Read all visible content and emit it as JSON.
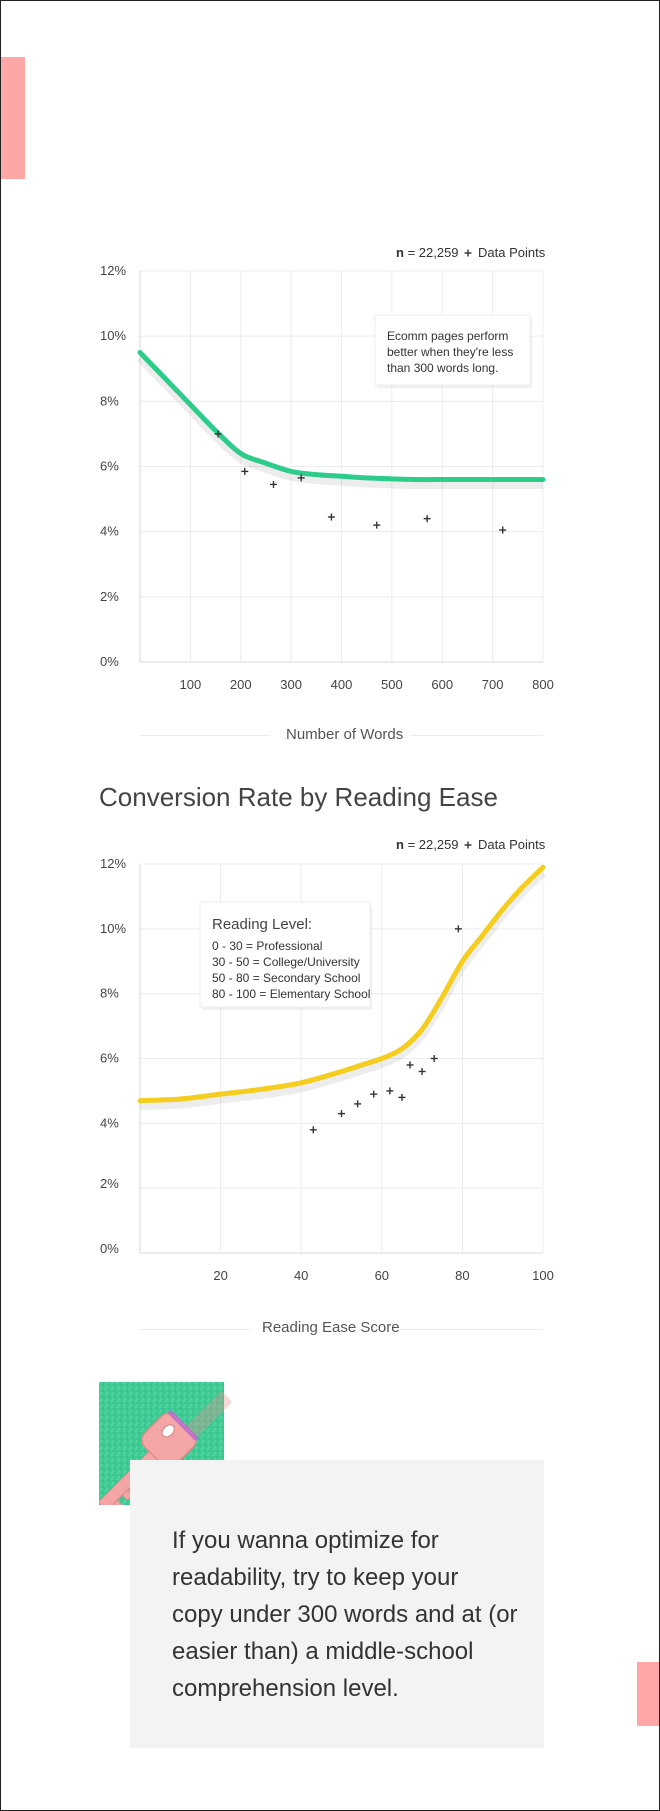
{
  "chart_data": [
    {
      "type": "line",
      "legend": {
        "n_label": "n",
        "n_value": "= 22,259",
        "marker": "+",
        "marker_label": "Data Points"
      },
      "annotation": [
        "Ecomm pages perform",
        "better when they're less",
        "than 300 words long."
      ],
      "xlabel": "Number of Words",
      "ylabel": "",
      "xlim": [
        0,
        800
      ],
      "ylim": [
        0,
        12
      ],
      "x_ticks": [
        100,
        200,
        300,
        400,
        500,
        600,
        700,
        800
      ],
      "y_ticks": [
        "0%",
        "2%",
        "4%",
        "6%",
        "8%",
        "10%",
        "12%"
      ],
      "y_tick_values": [
        0,
        2,
        4,
        6,
        8,
        10,
        12
      ],
      "grid": true,
      "line_color": "#2ecc8b",
      "series": [
        {
          "kind": "line",
          "x": [
            0,
            50,
            100,
            150,
            200,
            250,
            300,
            350,
            400,
            450,
            500,
            550,
            600,
            650,
            700,
            750,
            800
          ],
          "y": [
            9.5,
            8.7,
            7.9,
            7.1,
            6.4,
            6.1,
            5.85,
            5.75,
            5.7,
            5.65,
            5.62,
            5.6,
            5.6,
            5.6,
            5.6,
            5.6,
            5.6
          ]
        },
        {
          "kind": "scatter",
          "x": [
            155,
            208,
            265,
            320,
            380,
            470,
            570,
            720
          ],
          "y": [
            7.0,
            5.85,
            5.45,
            5.65,
            4.45,
            4.2,
            4.4,
            4.05
          ]
        }
      ]
    },
    {
      "type": "line",
      "title": "Conversion Rate by Reading Ease",
      "legend": {
        "n_label": "n",
        "n_value": "= 22,259",
        "marker": "+",
        "marker_label": "Data Points"
      },
      "annotation_title": "Reading Level:",
      "annotation": [
        "0 - 30 = Professional",
        "30 - 50 = College/University",
        "50 - 80 = Secondary School",
        "80 - 100 = Elementary School"
      ],
      "xlabel": "Reading Ease Score",
      "ylabel": "",
      "xlim": [
        0,
        100
      ],
      "ylim": [
        0,
        12
      ],
      "x_ticks": [
        20,
        40,
        60,
        80,
        100
      ],
      "y_ticks": [
        "0%",
        "2%",
        "4%",
        "6%",
        "8%",
        "10%",
        "12%"
      ],
      "y_tick_values": [
        0,
        2,
        4,
        6,
        8,
        10,
        12
      ],
      "grid": true,
      "line_color": "#f5cd1f",
      "series": [
        {
          "kind": "line",
          "x": [
            0,
            10,
            20,
            30,
            40,
            50,
            55,
            60,
            65,
            70,
            75,
            80,
            85,
            90,
            95,
            100
          ],
          "y": [
            4.7,
            4.75,
            4.9,
            5.05,
            5.25,
            5.6,
            5.8,
            6.0,
            6.3,
            6.9,
            7.9,
            9.0,
            9.8,
            10.6,
            11.3,
            11.9
          ]
        },
        {
          "kind": "scatter",
          "x": [
            43,
            50,
            54,
            58,
            62,
            65,
            67,
            70,
            73,
            79
          ],
          "y": [
            3.8,
            4.3,
            4.6,
            4.9,
            5.0,
            4.8,
            5.8,
            5.6,
            6.0,
            10.0
          ]
        }
      ]
    }
  ],
  "quote": {
    "lines": [
      "If you wanna optimize for",
      "readability, try to keep your",
      "copy under 300 words and at (or",
      "easier than) a middle-school",
      "comprehension level."
    ]
  },
  "colors": {
    "accent_pink": "#ffa6a6",
    "green": "#2ecc8b",
    "yellow": "#f5cd1f",
    "key_pink": "#f4a5a5"
  },
  "icons": {
    "key": "key-icon"
  }
}
